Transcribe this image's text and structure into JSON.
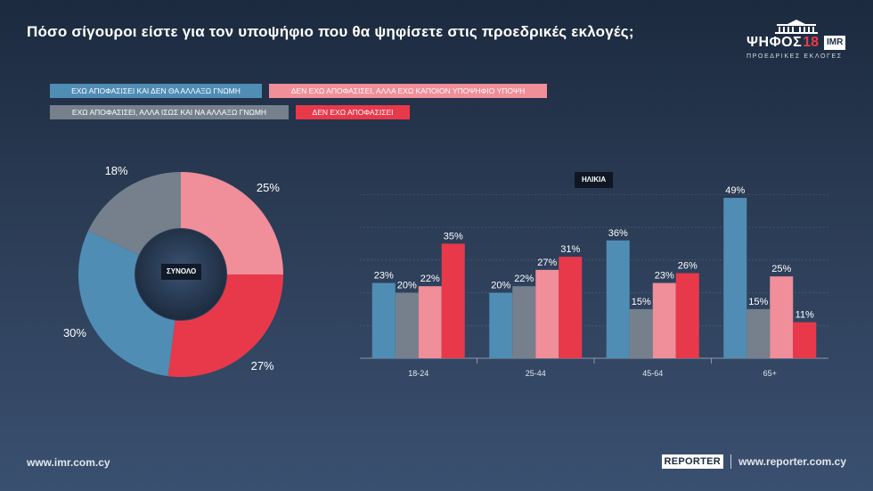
{
  "title": "Πόσο σίγουροι είστε για τον υποψήφιο που θα ψηφίσετε στις προεδρικές εκλογές;",
  "logo": {
    "word": "ΨΗΦΟΣ",
    "number": "18",
    "brand": "IMR",
    "subtitle": "ΠΡΟΕΔΡΙΚΕΣ ΕΚΛΟΓΕΣ"
  },
  "legend": [
    {
      "label": "ΕΧΩ ΑΠΟΦΑΣΙΣΕΙ ΚΑΙ ΔΕΝ ΘΑ ΑΛΛΑΞΩ ΓΝΩΜΗ",
      "color": "#4f8db5"
    },
    {
      "label": "ΔΕΝ ΕΧΩ ΑΠΟΦΑΣΙΣΕΙ, ΑΛΛΑ ΕΧΩ ΚΑΠΟΙΟΝ ΥΠΟΨΗΦΙΟ ΥΠΟΨΗ",
      "color": "#f08e99"
    },
    {
      "label": "ΕΧΩ ΑΠΟΦΑΣΙΣΕΙ, ΑΛΛΑ ΙΣΩΣ ΚΑΙ ΝΑ ΑΛΛΑΞΩ ΓΝΩΜΗ",
      "color": "#75808c"
    },
    {
      "label": "ΔΕΝ ΕΧΩ ΑΠΟΦΑΣΙΣΕΙ",
      "color": "#e8394b"
    }
  ],
  "chart_data": [
    {
      "type": "pie",
      "center_label": "ΣΥΝΟΛΟ",
      "slices": [
        {
          "series": "ΔΕΝ ΕΧΩ ΑΠΟΦΑΣΙΣΕΙ, ΑΛΛΑ ΕΧΩ ΚΑΠΟΙΟΝ ΥΠΟΨΗΦΙΟ ΥΠΟΨΗ",
          "value": 25,
          "label": "25%",
          "color": "#f08e99"
        },
        {
          "series": "ΔΕΝ ΕΧΩ ΑΠΟΦΑΣΙΣΕΙ",
          "value": 27,
          "label": "27%",
          "color": "#e8394b"
        },
        {
          "series": "ΕΧΩ ΑΠΟΦΑΣΙΣΕΙ ΚΑΙ ΔΕΝ ΘΑ ΑΛΛΑΞΩ ΓΝΩΜΗ",
          "value": 30,
          "label": "30%",
          "color": "#4f8db5"
        },
        {
          "series": "ΕΧΩ ΑΠΟΦΑΣΙΣΕΙ, ΑΛΛΑ ΙΣΩΣ ΚΑΙ ΝΑ ΑΛΛΑΞΩ ΓΝΩΜΗ",
          "value": 18,
          "label": "18%",
          "color": "#75808c"
        }
      ]
    },
    {
      "type": "bar",
      "title": "ΗΛΙΚΙΑ",
      "categories": [
        "18-24",
        "25-44",
        "45-64",
        "65+"
      ],
      "series": [
        {
          "name": "ΕΧΩ ΑΠΟΦΑΣΙΣΕΙ ΚΑΙ ΔΕΝ ΘΑ ΑΛΛΑΞΩ ΓΝΩΜΗ",
          "color": "#4f8db5",
          "values": [
            23,
            20,
            36,
            49
          ]
        },
        {
          "name": "ΕΧΩ ΑΠΟΦΑΣΙΣΕΙ, ΑΛΛΑ ΙΣΩΣ ΚΑΙ ΝΑ ΑΛΛΑΞΩ ΓΝΩΜΗ",
          "color": "#75808c",
          "values": [
            20,
            22,
            15,
            15
          ]
        },
        {
          "name": "ΔΕΝ ΕΧΩ ΑΠΟΦΑΣΙΣΕΙ, ΑΛΛΑ ΕΧΩ ΚΑΠΟΙΟΝ ΥΠΟΨΗΦΙΟ ΥΠΟΨΗ",
          "color": "#f08e99",
          "values": [
            22,
            27,
            23,
            25
          ]
        },
        {
          "name": "ΔΕΝ ΕΧΩ ΑΠΟΦΑΣΙΣΕΙ",
          "color": "#e8394b",
          "values": [
            35,
            31,
            26,
            11
          ]
        }
      ],
      "ylim": [
        0,
        55
      ],
      "grid": true
    }
  ],
  "footer": {
    "left_url": "www.imr.com.cy",
    "partner": "REPORTER",
    "right_url": "www.reporter.com.cy"
  }
}
